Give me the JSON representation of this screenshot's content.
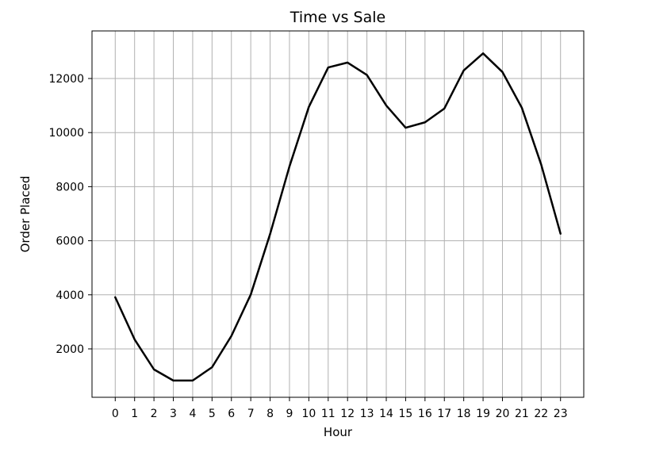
{
  "chart_data": {
    "type": "line",
    "title": "Time vs Sale",
    "xlabel": "Hour",
    "ylabel": "Order Placed",
    "x": [
      0,
      1,
      2,
      3,
      4,
      5,
      6,
      7,
      8,
      9,
      10,
      11,
      12,
      13,
      14,
      15,
      16,
      17,
      18,
      19,
      20,
      21,
      22,
      23
    ],
    "series": [
      {
        "values": [
          3910,
          2350,
          1240,
          830,
          830,
          1320,
          2480,
          4010,
          6250,
          8750,
          10950,
          12410,
          12590,
          12130,
          11000,
          10180,
          10380,
          10890,
          12300,
          12930,
          12240,
          10920,
          8820,
          6260
        ],
        "color": "#000000"
      }
    ],
    "xlim": [
      -1.2,
      24.2
    ],
    "ylim": [
      210,
      13760
    ],
    "xticks": [
      "0",
      "1",
      "2",
      "3",
      "4",
      "5",
      "6",
      "7",
      "8",
      "9",
      "10",
      "11",
      "12",
      "13",
      "14",
      "15",
      "16",
      "17",
      "18",
      "19",
      "20",
      "21",
      "22",
      "23"
    ],
    "yticks": [
      2000,
      4000,
      6000,
      8000,
      10000,
      12000
    ],
    "grid": true
  }
}
